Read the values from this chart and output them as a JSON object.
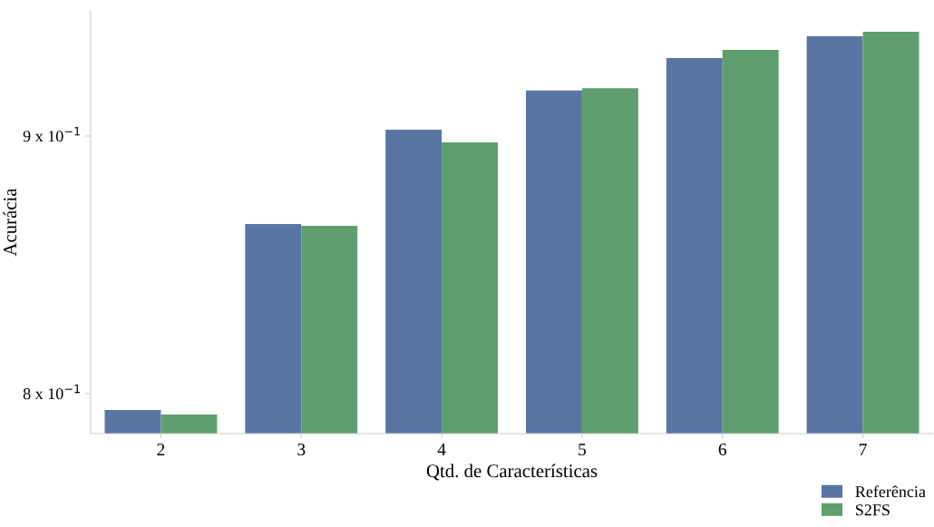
{
  "chart_data": {
    "type": "bar",
    "xlabel": "Qtd. de Características",
    "ylabel": "Acurácia",
    "categories": [
      "2",
      "3",
      "4",
      "5",
      "6",
      "7"
    ],
    "series": [
      {
        "name": "Referência",
        "color": "#5875a4",
        "values": [
          0.794,
          0.8645,
          0.9026,
          0.9189,
          0.9327,
          0.942
        ]
      },
      {
        "name": "S2FS",
        "color": "#5f9e6e",
        "values": [
          0.7924,
          0.8638,
          0.8974,
          0.9199,
          0.9362,
          0.944
        ]
      }
    ],
    "log": "y",
    "ylim": [
      0.7855,
      0.953
    ],
    "yticks": [
      {
        "value": 0.8,
        "label": "8 x 10$^{−1}$"
      },
      {
        "value": 0.9,
        "label": "9 x 10$^{−1}$"
      }
    ],
    "grid": false,
    "legend": "bottom right"
  }
}
